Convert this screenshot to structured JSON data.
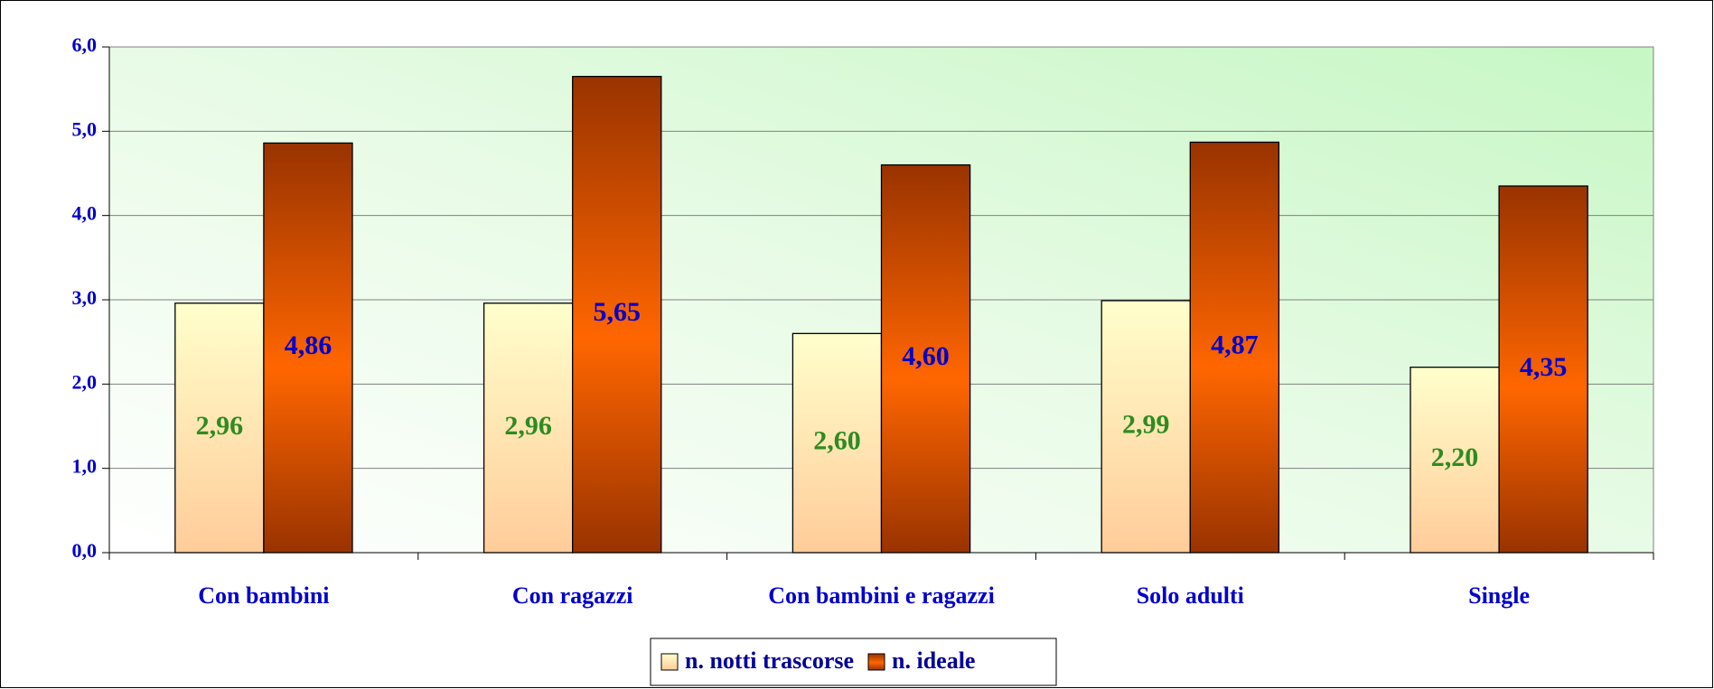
{
  "chart_data": {
    "type": "bar",
    "categories": [
      "Con bambini",
      "Con ragazzi",
      "Con bambini e ragazzi",
      "Solo adulti",
      "Single"
    ],
    "series": [
      {
        "name": "n. notti trascorse",
        "color": "#ffcc99",
        "values": [
          2.96,
          2.96,
          2.6,
          2.99,
          2.2
        ],
        "value_labels": [
          "2,96",
          "2,96",
          "2,60",
          "2,99",
          "2,20"
        ]
      },
      {
        "name": "n. ideale",
        "color": "#ff6600",
        "values": [
          4.86,
          5.65,
          4.6,
          4.87,
          4.35
        ],
        "value_labels": [
          "4,86",
          "5,65",
          "4,60",
          "4,87",
          "4,35"
        ]
      }
    ],
    "ylim": [
      0,
      6
    ],
    "yticks": [
      {
        "value": 0,
        "label": "0,0"
      },
      {
        "value": 1,
        "label": "1,0"
      },
      {
        "value": 2,
        "label": "2,0"
      },
      {
        "value": 3,
        "label": "3,0"
      },
      {
        "value": 4,
        "label": "4,0"
      },
      {
        "value": 5,
        "label": "5,0"
      },
      {
        "value": 6,
        "label": "6,0"
      }
    ],
    "grid": true,
    "legend": "bottom"
  }
}
